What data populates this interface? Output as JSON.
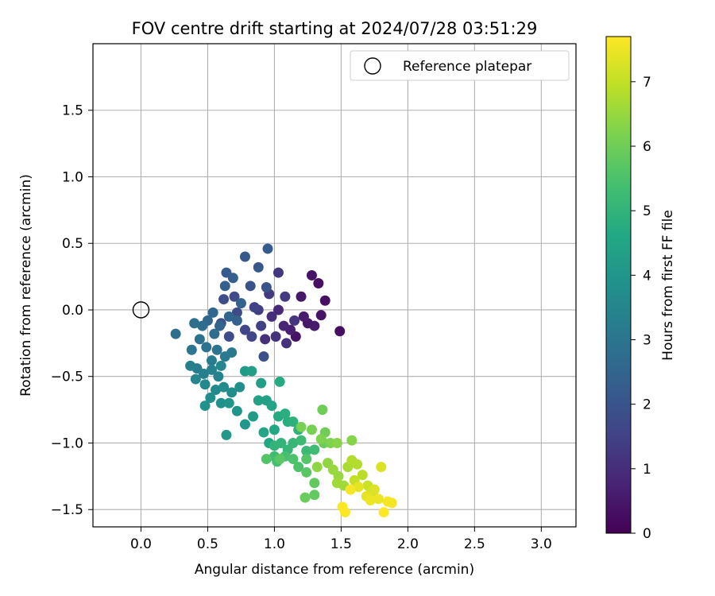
{
  "chart_data": {
    "type": "scatter",
    "title": "FOV centre drift starting at 2024/07/28 03:51:29",
    "xlabel": "Angular distance from reference (arcmin)",
    "ylabel": "Rotation from reference (arcmin)",
    "xlim": [
      -0.36,
      3.26
    ],
    "ylim": [
      -1.63,
      2.0
    ],
    "xticks": [
      0.0,
      0.5,
      1.0,
      1.5,
      2.0,
      2.5,
      3.0
    ],
    "xtick_labels": [
      "0.0",
      "0.5",
      "1.0",
      "1.5",
      "2.0",
      "2.5",
      "3.0"
    ],
    "yticks": [
      -1.5,
      -1.0,
      -0.5,
      0.0,
      0.5,
      1.0,
      1.5
    ],
    "ytick_labels": [
      "−1.5",
      "−1.0",
      "−0.5",
      "0.0",
      "0.5",
      "1.0",
      "1.5"
    ],
    "grid": true,
    "legend": {
      "position": "top-right",
      "entries": [
        "Reference platepar"
      ]
    },
    "reference_point": {
      "x": 0.0,
      "y": 0.0
    },
    "colorbar": {
      "label": "Hours from first FF file",
      "min": 0,
      "max": 7.7,
      "ticks": [
        0,
        1,
        2,
        3,
        4,
        5,
        6,
        7
      ],
      "tick_labels": [
        "0",
        "1",
        "2",
        "3",
        "4",
        "5",
        "6",
        "7"
      ],
      "colormap": "viridis"
    },
    "points": [
      [
        1.49,
        -0.16,
        0.3
      ],
      [
        1.38,
        0.07,
        0.3
      ],
      [
        1.33,
        0.2,
        0.3
      ],
      [
        1.28,
        0.26,
        0.4
      ],
      [
        1.35,
        -0.04,
        0.4
      ],
      [
        1.25,
        -0.1,
        0.5
      ],
      [
        1.2,
        0.1,
        0.5
      ],
      [
        1.16,
        -0.2,
        0.4
      ],
      [
        1.22,
        -0.05,
        0.6
      ],
      [
        1.3,
        -0.12,
        0.6
      ],
      [
        1.12,
        -0.15,
        0.7
      ],
      [
        1.07,
        -0.12,
        0.8
      ],
      [
        1.03,
        0.0,
        0.9
      ],
      [
        0.98,
        -0.05,
        1.0
      ],
      [
        0.93,
        -0.22,
        1.0
      ],
      [
        1.01,
        -0.2,
        1.1
      ],
      [
        1.09,
        -0.25,
        1.1
      ],
      [
        1.03,
        0.28,
        1.2
      ],
      [
        1.15,
        -0.08,
        1.2
      ],
      [
        1.08,
        0.1,
        1.3
      ],
      [
        0.96,
        0.12,
        1.3
      ],
      [
        0.88,
        0.0,
        1.4
      ],
      [
        0.85,
        0.02,
        1.5
      ],
      [
        0.9,
        -0.12,
        1.5
      ],
      [
        0.83,
        -0.2,
        1.6
      ],
      [
        0.78,
        -0.15,
        1.6
      ],
      [
        0.72,
        -0.02,
        1.7
      ],
      [
        0.7,
        0.1,
        1.7
      ],
      [
        0.66,
        -0.2,
        1.8
      ],
      [
        0.62,
        0.08,
        1.8
      ],
      [
        0.6,
        -0.1,
        1.9
      ],
      [
        0.92,
        -0.35,
        1.9
      ],
      [
        0.94,
        0.17,
        2.0
      ],
      [
        0.82,
        0.18,
        2.0
      ],
      [
        0.78,
        0.4,
        2.1
      ],
      [
        0.88,
        0.32,
        2.1
      ],
      [
        0.95,
        0.46,
        2.2
      ],
      [
        0.64,
        0.28,
        2.2
      ],
      [
        0.69,
        0.24,
        2.3
      ],
      [
        0.63,
        0.18,
        2.3
      ],
      [
        0.75,
        0.05,
        2.4
      ],
      [
        0.72,
        -0.08,
        2.4
      ],
      [
        0.66,
        -0.05,
        2.5
      ],
      [
        0.59,
        -0.12,
        2.5
      ],
      [
        0.54,
        -0.02,
        2.6
      ],
      [
        0.5,
        -0.08,
        2.6
      ],
      [
        0.55,
        -0.18,
        2.7
      ],
      [
        0.46,
        -0.12,
        2.7
      ],
      [
        0.4,
        -0.1,
        2.8
      ],
      [
        0.26,
        -0.18,
        2.8
      ],
      [
        0.44,
        -0.22,
        2.9
      ],
      [
        0.49,
        -0.28,
        2.9
      ],
      [
        0.38,
        -0.3,
        3.0
      ],
      [
        0.57,
        -0.3,
        3.0
      ],
      [
        0.63,
        -0.35,
        3.1
      ],
      [
        0.68,
        -0.32,
        3.1
      ],
      [
        0.53,
        -0.38,
        3.2
      ],
      [
        0.42,
        -0.44,
        3.2
      ],
      [
        0.37,
        -0.42,
        3.3
      ],
      [
        0.47,
        -0.48,
        3.3
      ],
      [
        0.53,
        -0.45,
        3.4
      ],
      [
        0.58,
        -0.5,
        3.4
      ],
      [
        0.6,
        -0.42,
        3.5
      ],
      [
        0.41,
        -0.52,
        3.5
      ],
      [
        0.48,
        -0.56,
        3.6
      ],
      [
        0.56,
        -0.6,
        3.6
      ],
      [
        0.62,
        -0.58,
        3.7
      ],
      [
        0.68,
        -0.62,
        3.7
      ],
      [
        0.74,
        -0.58,
        3.8
      ],
      [
        0.52,
        -0.66,
        3.8
      ],
      [
        0.48,
        -0.72,
        3.9
      ],
      [
        0.6,
        -0.7,
        3.9
      ],
      [
        0.66,
        -0.7,
        4.0
      ],
      [
        0.72,
        -0.76,
        4.0
      ],
      [
        0.64,
        -0.94,
        4.1
      ],
      [
        0.78,
        -0.86,
        4.1
      ],
      [
        0.84,
        -0.8,
        4.2
      ],
      [
        0.78,
        -0.46,
        4.2
      ],
      [
        0.83,
        -0.46,
        4.3
      ],
      [
        0.9,
        -0.55,
        4.3
      ],
      [
        0.88,
        -0.68,
        4.4
      ],
      [
        0.94,
        -0.68,
        4.4
      ],
      [
        0.98,
        -0.72,
        4.5
      ],
      [
        0.92,
        -0.92,
        4.5
      ],
      [
        0.96,
        -1.0,
        4.6
      ],
      [
        1.0,
        -0.9,
        4.6
      ],
      [
        1.04,
        -0.54,
        4.7
      ],
      [
        1.03,
        -0.8,
        4.7
      ],
      [
        1.08,
        -0.78,
        4.8
      ],
      [
        1.1,
        -0.84,
        4.8
      ],
      [
        1.14,
        -0.84,
        4.9
      ],
      [
        1.18,
        -0.9,
        4.9
      ],
      [
        1.0,
        -1.02,
        5.0
      ],
      [
        1.05,
        -1.0,
        5.0
      ],
      [
        1.1,
        -1.05,
        5.1
      ],
      [
        1.14,
        -1.0,
        5.1
      ],
      [
        1.2,
        -0.98,
        5.2
      ],
      [
        1.24,
        -1.06,
        5.2
      ],
      [
        1.3,
        -1.05,
        5.3
      ],
      [
        1.0,
        -1.1,
        5.3
      ],
      [
        1.02,
        -1.14,
        5.4
      ],
      [
        1.08,
        -1.1,
        5.4
      ],
      [
        1.14,
        -1.12,
        5.5
      ],
      [
        1.18,
        -1.18,
        5.5
      ],
      [
        1.24,
        -1.12,
        5.6
      ],
      [
        0.94,
        -1.12,
        5.6
      ],
      [
        1.04,
        -1.12,
        5.7
      ],
      [
        1.24,
        -1.22,
        5.7
      ],
      [
        1.3,
        -1.3,
        5.8
      ],
      [
        1.3,
        -1.39,
        5.8
      ],
      [
        1.23,
        -1.41,
        5.9
      ],
      [
        1.37,
        -1.0,
        5.9
      ],
      [
        1.38,
        -0.92,
        6.0
      ],
      [
        1.36,
        -0.75,
        6.0
      ],
      [
        1.2,
        -0.88,
        6.1
      ],
      [
        1.28,
        -0.9,
        6.1
      ],
      [
        1.35,
        -0.97,
        6.2
      ],
      [
        1.42,
        -1.0,
        6.2
      ],
      [
        1.47,
        -1.0,
        6.3
      ],
      [
        1.58,
        -0.98,
        6.3
      ],
      [
        1.32,
        -1.18,
        6.4
      ],
      [
        1.4,
        -1.15,
        6.4
      ],
      [
        1.44,
        -1.2,
        6.5
      ],
      [
        1.48,
        -1.25,
        6.5
      ],
      [
        1.52,
        -1.32,
        6.6
      ],
      [
        1.47,
        -1.3,
        6.6
      ],
      [
        1.55,
        -1.18,
        6.7
      ],
      [
        1.58,
        -1.13,
        6.8
      ],
      [
        1.62,
        -1.16,
        6.8
      ],
      [
        1.66,
        -1.24,
        6.9
      ],
      [
        1.6,
        -1.28,
        7.0
      ],
      [
        1.7,
        -1.32,
        7.1
      ],
      [
        1.72,
        -1.38,
        7.2
      ],
      [
        1.75,
        -1.35,
        7.3
      ],
      [
        1.8,
        -1.18,
        7.3
      ],
      [
        1.63,
        -1.33,
        7.4
      ],
      [
        1.69,
        -1.4,
        7.4
      ],
      [
        1.72,
        -1.43,
        7.5
      ],
      [
        1.78,
        -1.42,
        7.5
      ],
      [
        1.85,
        -1.44,
        7.6
      ],
      [
        1.88,
        -1.45,
        7.6
      ],
      [
        1.82,
        -1.52,
        7.7
      ],
      [
        1.53,
        -1.52,
        7.7
      ],
      [
        1.51,
        -1.48,
        7.7
      ],
      [
        1.57,
        -1.35,
        7.6
      ]
    ]
  }
}
